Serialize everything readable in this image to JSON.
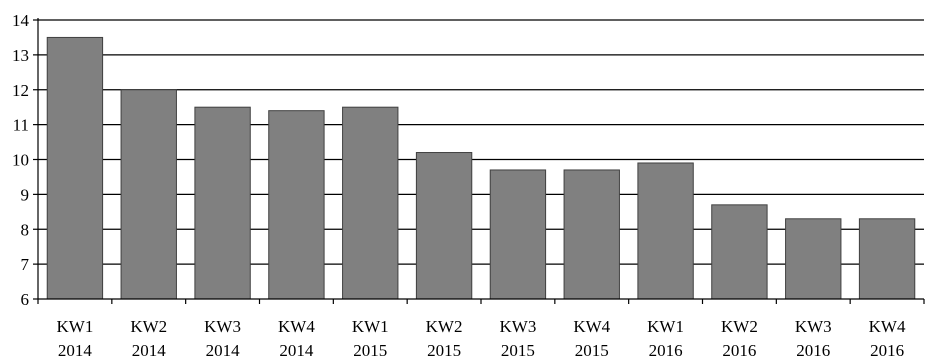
{
  "chart_data": {
    "type": "bar",
    "categories": [
      [
        "KW1",
        "2014"
      ],
      [
        "KW2",
        "2014"
      ],
      [
        "KW3",
        "2014"
      ],
      [
        "KW4",
        "2014"
      ],
      [
        "KW1",
        "2015"
      ],
      [
        "KW2",
        "2015"
      ],
      [
        "KW3",
        "2015"
      ],
      [
        "KW4",
        "2015"
      ],
      [
        "KW1",
        "2016"
      ],
      [
        "KW2",
        "2016"
      ],
      [
        "KW3",
        "2016"
      ],
      [
        "KW4",
        "2016"
      ]
    ],
    "values": [
      13.5,
      12.0,
      11.5,
      11.4,
      11.5,
      10.2,
      9.7,
      9.7,
      9.9,
      8.7,
      8.3,
      8.3
    ],
    "ylim": [
      6,
      14
    ],
    "yticks": [
      6,
      7,
      8,
      9,
      10,
      11,
      12,
      13,
      14
    ],
    "grid": true,
    "legend": "none",
    "bar_color": "#808080",
    "bar_edge_color": "#404040"
  }
}
